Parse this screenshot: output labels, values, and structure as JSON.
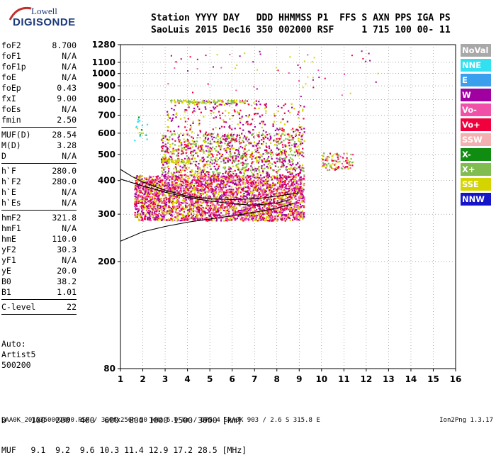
{
  "logo": {
    "line1": "Lowell",
    "line2": "DIGISONDE"
  },
  "header": {
    "row1": "Station YYYY DAY   DDD HHMMSS P1  FFS S AXN PPS IGA PS",
    "row2": "SaoLuis 2015 Dec16 350 002000 RSF     1 715 100 00- 11"
  },
  "params": {
    "group1": [
      {
        "k": "foF2",
        "v": "8.700"
      },
      {
        "k": "foF1",
        "v": "N/A"
      },
      {
        "k": "foF1p",
        "v": "N/A"
      },
      {
        "k": "foE",
        "v": "N/A"
      },
      {
        "k": "foEp",
        "v": "0.43"
      },
      {
        "k": "fxI",
        "v": "9.00"
      },
      {
        "k": "foEs",
        "v": "N/A"
      },
      {
        "k": "fmin",
        "v": "2.50"
      }
    ],
    "group2": [
      {
        "k": "MUF(D)",
        "v": "28.54"
      },
      {
        "k": "M(D)",
        "v": "3.28"
      },
      {
        "k": "D",
        "v": "N/A"
      }
    ],
    "group3": [
      {
        "k": "h`F",
        "v": "280.0"
      },
      {
        "k": "h`F2",
        "v": "280.0"
      },
      {
        "k": "h`E",
        "v": "N/A"
      },
      {
        "k": "h`Es",
        "v": "N/A"
      }
    ],
    "group4": [
      {
        "k": "hmF2",
        "v": "321.8"
      },
      {
        "k": "hmF1",
        "v": "N/A"
      },
      {
        "k": "hmE",
        "v": "110.0"
      },
      {
        "k": "yF2",
        "v": "30.3"
      },
      {
        "k": "yF1",
        "v": "N/A"
      },
      {
        "k": "yE",
        "v": "20.0"
      },
      {
        "k": "B0",
        "v": "38.2"
      },
      {
        "k": "B1",
        "v": "1.01"
      }
    ],
    "group5": [
      {
        "k": "C-level",
        "v": "22"
      }
    ]
  },
  "auto": {
    "line1": "Auto:",
    "line2": "Artist5",
    "line3": "500200"
  },
  "legend": [
    {
      "label": "NoVal",
      "color": "#a8a8a8"
    },
    {
      "label": "NNE",
      "color": "#33e0f0"
    },
    {
      "label": "E",
      "color": "#3aa0ee"
    },
    {
      "label": "W",
      "color": "#a000a0"
    },
    {
      "label": "Vo-",
      "color": "#f050a8"
    },
    {
      "label": "Vo+",
      "color": "#f0003c"
    },
    {
      "label": "SSW",
      "color": "#f4b0b0"
    },
    {
      "label": "X-",
      "color": "#108c10"
    },
    {
      "label": "X+",
      "color": "#80bc50"
    },
    {
      "label": "SSE",
      "color": "#d4d400"
    },
    {
      "label": "NNW",
      "color": "#1414c8"
    }
  ],
  "dtable": {
    "row1": "D     100  200  400  600  800 1000 1500 3000 [km]",
    "row2": "MUF   9.1  9.2  9.6 10.3 11.4 12.9 17.2 28.5 [MHz]"
  },
  "footer": {
    "left": "SAA0K_2015350002000.RSF / 300fx256h 50 kHz 5.0 km / DPS-4 SAA0K 903 / 2.6 S 315.8 E",
    "right": "Ion2Png 1.3.17"
  },
  "chart_data": {
    "type": "scatter",
    "title": "",
    "xlabel": "",
    "ylabel": "",
    "xlim": [
      1,
      16
    ],
    "ylim": [
      80,
      1280
    ],
    "y_scale": "log",
    "x_ticks": [
      "1",
      "2",
      "3",
      "4",
      "5",
      "6",
      "7",
      "8",
      "9",
      "10",
      "11",
      "12",
      "13",
      "14",
      "15",
      "16"
    ],
    "y_ticks": [
      "80",
      "200",
      "300",
      "400",
      "500",
      "600",
      "700",
      "800",
      "900",
      "1000",
      "1100",
      "1280"
    ],
    "grid": "dotted",
    "legend_position": "right",
    "clusters": [
      {
        "x0": 1.6,
        "x1": 9.2,
        "y0": 285,
        "y1": 330,
        "density": "high",
        "colors": [
          "Vo+",
          "W",
          "Vo-",
          "SSE"
        ]
      },
      {
        "x0": 1.6,
        "x1": 9.2,
        "y0": 330,
        "y1": 420,
        "density": "high",
        "colors": [
          "Vo+",
          "W",
          "SSE",
          "Vo-"
        ]
      },
      {
        "x0": 2.8,
        "x1": 9.2,
        "y0": 420,
        "y1": 600,
        "density": "medium",
        "colors": [
          "W",
          "Vo+",
          "SSE",
          "X+"
        ]
      },
      {
        "x0": 3.0,
        "x1": 7.5,
        "y0": 600,
        "y1": 800,
        "density": "low",
        "colors": [
          "W",
          "SSE",
          "Vo+"
        ]
      },
      {
        "x0": 7.8,
        "x1": 9.2,
        "y0": 600,
        "y1": 780,
        "density": "low",
        "colors": [
          "SSE",
          "Vo+",
          "W"
        ]
      },
      {
        "x0": 10.0,
        "x1": 11.4,
        "y0": 440,
        "y1": 510,
        "density": "medium",
        "colors": [
          "SSE",
          "Vo+",
          "X+",
          "Vo-"
        ]
      },
      {
        "x0": 3.2,
        "x1": 6.6,
        "y0": 780,
        "y1": 800,
        "density": "band",
        "colors": [
          "SSE",
          "X+"
        ]
      },
      {
        "x0": 2.8,
        "x1": 4.3,
        "y0": 466,
        "y1": 482,
        "density": "band",
        "colors": [
          "SSE"
        ]
      },
      {
        "x0": 1.6,
        "x1": 2.2,
        "y0": 560,
        "y1": 700,
        "density": "low",
        "colors": [
          "SSE",
          "NNE",
          "X-"
        ]
      }
    ],
    "traces": [
      {
        "name": "o-trace",
        "x": [
          1.0,
          2.0,
          3.0,
          4.0,
          5.0,
          6.0,
          7.0,
          8.0,
          8.8
        ],
        "y": [
          238,
          258,
          270,
          280,
          288,
          296,
          305,
          316,
          330
        ]
      },
      {
        "name": "x-trace",
        "x": [
          1.0,
          1.5,
          2.0,
          3.0,
          4.0,
          5.0,
          6.0,
          7.0,
          8.0,
          9.0
        ],
        "y": [
          440,
          415,
          395,
          368,
          350,
          342,
          340,
          342,
          350,
          360
        ]
      },
      {
        "name": "upper-trace",
        "x": [
          1.0,
          2.0,
          3.0,
          4.0,
          5.0,
          6.0,
          7.0,
          8.0,
          8.6
        ],
        "y": [
          405,
          382,
          362,
          346,
          336,
          328,
          324,
          330,
          340
        ]
      }
    ]
  }
}
